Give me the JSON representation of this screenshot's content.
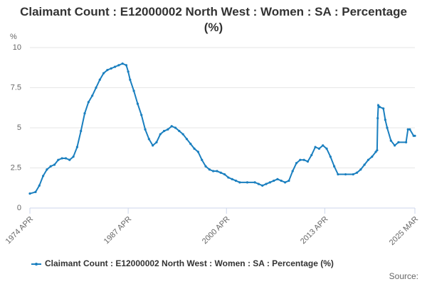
{
  "chart_data": {
    "type": "line",
    "title": "Claimant Count : E12000002 North West : Women : SA : Percentage (%)",
    "y_label": "%",
    "source": "Source:",
    "x": [
      1974.25,
      1975,
      1975.5,
      1976,
      1976.5,
      1977,
      1977.5,
      1978,
      1978.5,
      1979,
      1979.5,
      1980,
      1980.5,
      1981,
      1981.5,
      1982,
      1982.5,
      1983,
      1983.5,
      1984,
      1984.5,
      1985,
      1985.5,
      1986,
      1986.5,
      1987,
      1987.25,
      1987.5,
      1988,
      1988.5,
      1989,
      1989.5,
      1990,
      1990.5,
      1991,
      1991.5,
      1992,
      1992.5,
      1993,
      1993.5,
      1994,
      1994.5,
      1995,
      1995.5,
      1996,
      1996.5,
      1997,
      1997.5,
      1998,
      1998.5,
      1999,
      1999.5,
      2000,
      2000.5,
      2001,
      2001.5,
      2002,
      2003,
      2004,
      2004.5,
      2005,
      2005.5,
      2006,
      2006.5,
      2007,
      2007.5,
      2008,
      2008.5,
      2009,
      2009.5,
      2010,
      2010.5,
      2011,
      2011.5,
      2012,
      2012.5,
      2013,
      2013.5,
      2014,
      2014.5,
      2015,
      2016,
      2017,
      2017.5,
      2018,
      2018.5,
      2019,
      2019.5,
      2020,
      2020.17,
      2020.25,
      2020.33,
      2020.5,
      2021,
      2021.25,
      2021.5,
      2022,
      2022.5,
      2023,
      2024,
      2024.25,
      2024.5,
      2025,
      2025.17
    ],
    "series": [
      {
        "name": "Claimant Count : E12000002 North West : Women : SA : Percentage (%)",
        "color": "#1a7fbf",
        "values": [
          0.9,
          1.0,
          1.4,
          2.0,
          2.4,
          2.6,
          2.7,
          3.0,
          3.1,
          3.1,
          3.0,
          3.2,
          3.8,
          4.8,
          5.9,
          6.6,
          7.0,
          7.5,
          8.0,
          8.4,
          8.6,
          8.7,
          8.8,
          8.9,
          9.0,
          8.9,
          8.5,
          8.0,
          7.3,
          6.5,
          5.8,
          4.9,
          4.3,
          3.9,
          4.1,
          4.6,
          4.8,
          4.9,
          5.1,
          5.0,
          4.8,
          4.6,
          4.3,
          4.0,
          3.7,
          3.5,
          3.0,
          2.6,
          2.4,
          2.3,
          2.3,
          2.2,
          2.1,
          1.9,
          1.8,
          1.7,
          1.6,
          1.6,
          1.6,
          1.5,
          1.4,
          1.5,
          1.6,
          1.7,
          1.8,
          1.7,
          1.6,
          1.7,
          2.3,
          2.8,
          3.0,
          3.0,
          2.9,
          3.3,
          3.8,
          3.7,
          3.9,
          3.7,
          3.2,
          2.6,
          2.1,
          2.1,
          2.1,
          2.2,
          2.4,
          2.7,
          3.0,
          3.2,
          3.5,
          3.6,
          5.6,
          6.4,
          6.3,
          6.2,
          5.5,
          5.0,
          4.2,
          3.9,
          4.1,
          4.1,
          4.9,
          4.9,
          4.5,
          4.5
        ]
      }
    ],
    "xlim": [
      1974.25,
      2025.17
    ],
    "xticks": [
      {
        "value": 1974.25,
        "label": "1974 APR"
      },
      {
        "value": 1987.25,
        "label": "1987 APR"
      },
      {
        "value": 2000.25,
        "label": "2000 APR"
      },
      {
        "value": 2013.25,
        "label": "2013 APR"
      },
      {
        "value": 2025.17,
        "label": "2025 MAR"
      }
    ],
    "ylim": [
      0,
      10
    ],
    "yticks": [
      0,
      2.5,
      5,
      7.5,
      10
    ],
    "grid": true
  }
}
